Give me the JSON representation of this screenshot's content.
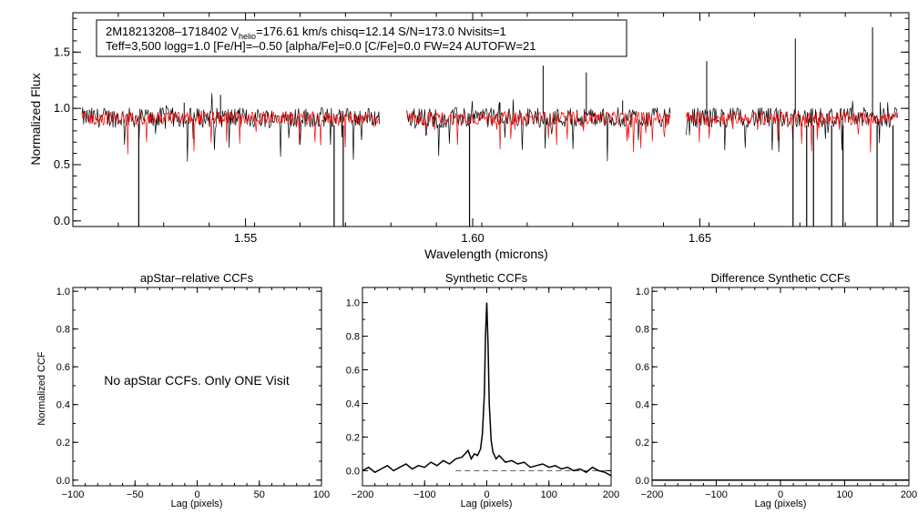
{
  "chart_data": [
    {
      "type": "line",
      "panel": "spectrum",
      "title": "",
      "xlabel": "Wavelength (microns)",
      "ylabel": "Normalized Flux",
      "xlim": [
        1.512,
        1.696
      ],
      "ylim": [
        -0.05,
        1.85
      ],
      "xticks": [
        1.55,
        1.6,
        1.65
      ],
      "xtick_labels": [
        "1.55",
        "1.60",
        "1.65"
      ],
      "yticks": [
        0.0,
        0.5,
        1.0,
        1.5
      ],
      "ytick_labels": [
        "0.0",
        "0.5",
        "1.0",
        "1.5"
      ],
      "info_line1_star": "2M18213208–1718402",
      "info_line1_vhelio_sym": "V",
      "info_line1_vhelio_sub": "helio",
      "info_line1_rest": "=176.61 km/s  chisq=12.14  S/N=173.0  Nvisits=1",
      "info_line2": "Teff=3,500 logg=1.0 [Fe/H]=–0.50 [alpha/Fe]=0.0 [C/Fe]=0.0 FW=24 AUTOFW=21",
      "chip_ranges": [
        [
          1.514,
          1.5795
        ],
        [
          1.5855,
          1.6435
        ],
        [
          1.647,
          1.6935
        ]
      ],
      "series": [
        {
          "name": "observed spectrum",
          "color": "#000000",
          "continuum": 0.9,
          "noise": 0.09
        },
        {
          "name": "synthetic model",
          "color": "#ff0000",
          "continuum": 0.9,
          "noise": 0.06
        }
      ],
      "deep_lines": [
        1.5265,
        1.5695,
        1.5715,
        1.5993,
        1.6705,
        1.6735,
        1.675,
        1.679,
        1.6815,
        1.689,
        1.6925
      ],
      "emission_spikes": [
        {
          "x": 1.5365,
          "y": 1.05
        },
        {
          "x": 1.5445,
          "y": 1.12
        },
        {
          "x": 1.606,
          "y": 1.05
        },
        {
          "x": 1.6155,
          "y": 1.38
        },
        {
          "x": 1.625,
          "y": 1.32
        },
        {
          "x": 1.633,
          "y": 1.07
        },
        {
          "x": 1.6515,
          "y": 1.42
        },
        {
          "x": 1.671,
          "y": 1.62
        },
        {
          "x": 1.688,
          "y": 1.72
        }
      ]
    },
    {
      "type": "line",
      "panel": "apstar-ccf",
      "title": "apStar–relative CCFs",
      "xlabel": "Lag (pixels)",
      "ylabel": "Normalized CCF",
      "xlim": [
        -100,
        100
      ],
      "ylim": [
        -0.03,
        1.02
      ],
      "xticks": [
        -100,
        -50,
        0,
        50,
        100
      ],
      "xtick_labels": [
        "−100",
        "−50",
        "0",
        "50",
        "100"
      ],
      "yticks": [
        0.0,
        0.2,
        0.4,
        0.6,
        0.8,
        1.0
      ],
      "ytick_labels": [
        "0.0",
        "0.2",
        "0.4",
        "0.6",
        "0.8",
        "1.0"
      ],
      "note": "No apStar CCFs.  Only ONE Visit",
      "series": []
    },
    {
      "type": "line",
      "panel": "synthetic-ccf",
      "title": "Synthetic CCFs",
      "xlabel": "Lag (pixels)",
      "ylabel": "",
      "xlim": [
        -200,
        200
      ],
      "ylim": [
        -0.09,
        1.09
      ],
      "xticks": [
        -200,
        -100,
        0,
        100,
        200
      ],
      "xtick_labels": [
        "−200",
        "−100",
        "0",
        "100",
        "200"
      ],
      "yticks": [
        0.0,
        0.2,
        0.4,
        0.6,
        0.8,
        1.0
      ],
      "ytick_labels": [
        "0.0",
        "0.2",
        "0.4",
        "0.6",
        "0.8",
        "1.0"
      ],
      "baseline": 0.0,
      "series": [
        {
          "name": "synthetic CCF",
          "color": "#000000",
          "x": [
            -200,
            -190,
            -180,
            -170,
            -160,
            -150,
            -140,
            -130,
            -120,
            -110,
            -100,
            -90,
            -80,
            -70,
            -60,
            -50,
            -40,
            -30,
            -25,
            -20,
            -15,
            -10,
            -7,
            -4,
            -2,
            0,
            2,
            4,
            7,
            10,
            15,
            20,
            30,
            40,
            50,
            60,
            70,
            80,
            90,
            100,
            110,
            120,
            130,
            140,
            150,
            160,
            170,
            180,
            190,
            200
          ],
          "y": [
            0.0,
            0.02,
            -0.01,
            0.01,
            0.03,
            0.0,
            0.02,
            0.04,
            0.01,
            0.03,
            0.02,
            0.05,
            0.03,
            0.06,
            0.04,
            0.07,
            0.08,
            0.12,
            0.07,
            0.1,
            0.09,
            0.13,
            0.22,
            0.45,
            0.8,
            1.0,
            0.75,
            0.4,
            0.18,
            0.11,
            0.07,
            0.09,
            0.05,
            0.06,
            0.04,
            0.05,
            0.02,
            0.03,
            0.04,
            0.02,
            0.03,
            0.01,
            0.02,
            0.0,
            0.01,
            -0.01,
            0.02,
            0.0,
            -0.01,
            -0.03
          ]
        }
      ]
    },
    {
      "type": "line",
      "panel": "difference-ccf",
      "title": "Difference Synthetic CCFs",
      "xlabel": "Lag (pixels)",
      "ylabel": "",
      "xlim": [
        -200,
        200
      ],
      "ylim": [
        -0.03,
        1.02
      ],
      "xticks": [
        -200,
        -100,
        0,
        100,
        200
      ],
      "xtick_labels": [
        "−200",
        "−100",
        "0",
        "100",
        "200"
      ],
      "yticks": [
        0.0,
        0.2,
        0.4,
        0.6,
        0.8,
        1.0
      ],
      "ytick_labels": [
        "0.0",
        "0.2",
        "0.4",
        "0.6",
        "0.8",
        "1.0"
      ],
      "series": [
        {
          "name": "difference CCF",
          "color": "#000000",
          "x": [
            -200,
            200
          ],
          "y": [
            0.0,
            0.0
          ]
        }
      ]
    }
  ]
}
